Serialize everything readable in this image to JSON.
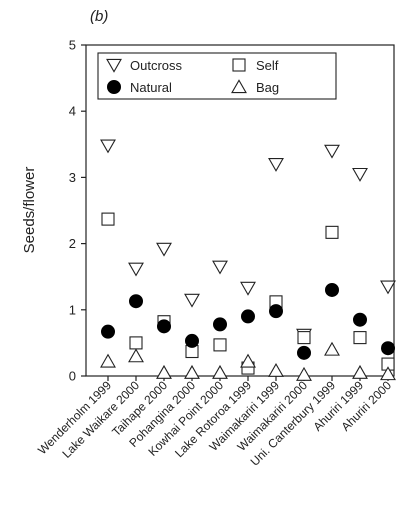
{
  "chart_data": {
    "type": "scatter",
    "panel_label": "(b)",
    "title": "",
    "xlabel": "",
    "ylabel": "Seeds/flower",
    "ylim": [
      0,
      5
    ],
    "yticks": [
      "0",
      "1",
      "2",
      "3",
      "4",
      "5"
    ],
    "categories": [
      "Wenderholm 1999",
      "Lake Waikare 2000",
      "Taihape 2000",
      "Pohangina 2000",
      "Kowhai Point 2000",
      "Lake Rotoroa 1999",
      "Waimakariri 1999",
      "Waimakariri 2000",
      "Uni. Canterbury 1999",
      "Ahuriri 1999",
      "Ahuriri 2000"
    ],
    "legend_position": "top",
    "series": [
      {
        "name": "Outcross",
        "marker": "triangle-down",
        "values": [
          3.48,
          1.62,
          1.92,
          1.15,
          1.65,
          1.33,
          3.2,
          0.62,
          3.4,
          3.05,
          1.35
        ]
      },
      {
        "name": "Self",
        "marker": "square",
        "values": [
          2.37,
          0.5,
          0.82,
          0.37,
          0.47,
          0.12,
          1.12,
          0.58,
          2.17,
          0.58,
          0.18
        ]
      },
      {
        "name": "Natural",
        "marker": "circle-filled",
        "values": [
          0.67,
          1.13,
          0.75,
          0.53,
          0.78,
          0.9,
          0.98,
          0.35,
          1.3,
          0.85,
          0.42
        ]
      },
      {
        "name": "Bag",
        "marker": "triangle-up",
        "values": [
          0.22,
          0.3,
          0.05,
          0.05,
          0.05,
          0.22,
          0.08,
          0.02,
          0.4,
          0.05,
          0.03
        ]
      }
    ]
  }
}
